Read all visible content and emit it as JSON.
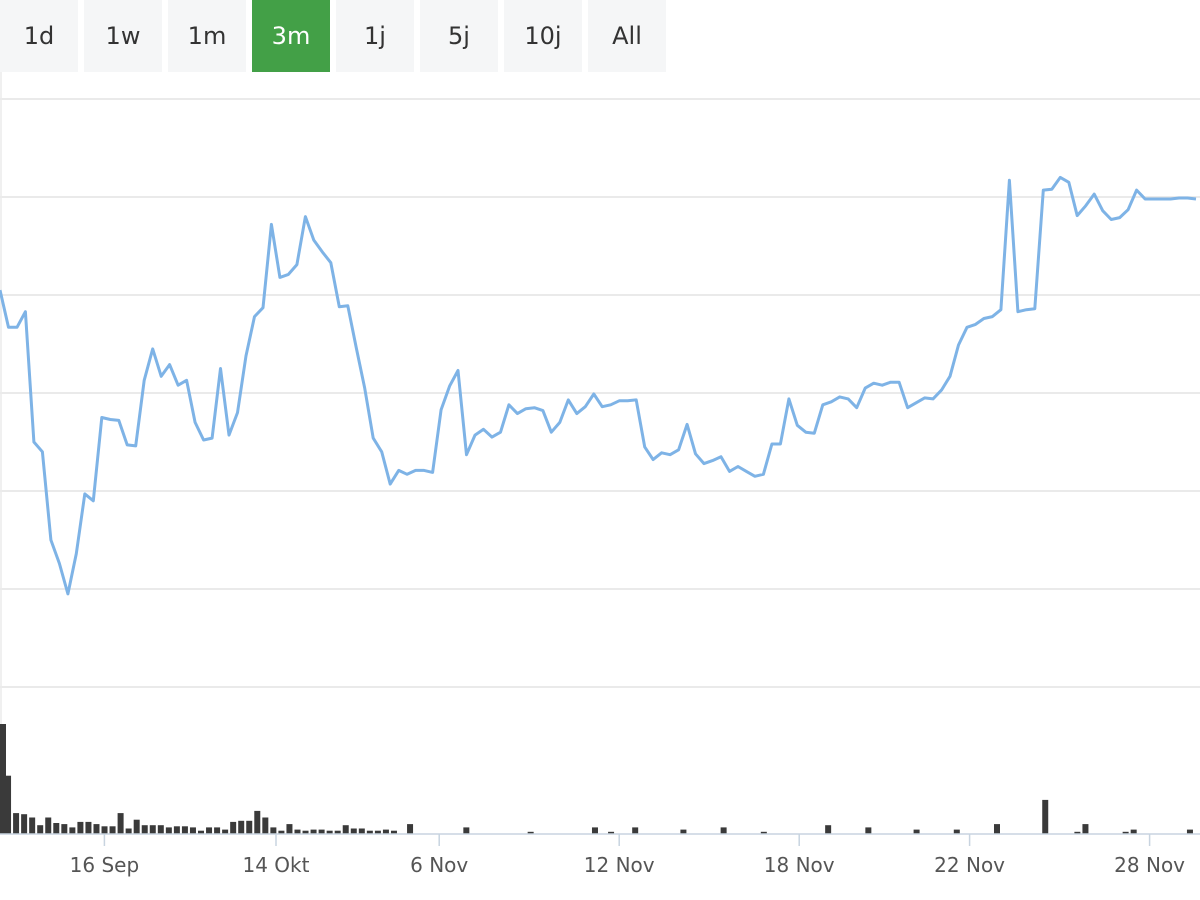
{
  "range_selector": {
    "options": [
      "1d",
      "1w",
      "1m",
      "3m",
      "1j",
      "5j",
      "10j",
      "All"
    ],
    "selected": "3m",
    "accent_color": "#43a047"
  },
  "chart_data": {
    "type": "line",
    "title": "",
    "xlabel": "",
    "ylabel": "",
    "line_color": "#7eb3e6",
    "volume_color": "#3a3a3a",
    "x_tick_labels": [
      "16 Sep",
      "14 Okt",
      "6 Nov",
      "12 Nov",
      "18 Nov",
      "22 Nov",
      "28 Nov"
    ],
    "ylim": [
      0,
      6
    ],
    "series": [
      {
        "values": [
          4.05,
          3.67,
          3.67,
          3.83,
          2.5,
          2.4,
          1.5,
          1.26,
          0.95,
          1.36,
          1.97,
          1.9,
          2.75,
          2.73,
          2.72,
          2.47,
          2.46,
          3.13,
          3.45,
          3.17,
          3.29,
          3.08,
          3.13,
          2.7,
          2.52,
          2.54,
          3.25,
          2.57,
          2.8,
          3.38,
          3.78,
          3.87,
          4.72,
          4.18,
          4.21,
          4.31,
          4.8,
          4.56,
          4.44,
          4.33,
          3.88,
          3.89,
          3.46,
          3.05,
          2.54,
          2.4,
          2.07,
          2.21,
          2.17,
          2.21,
          2.21,
          2.19,
          2.83,
          3.07,
          3.23,
          2.37,
          2.57,
          2.63,
          2.55,
          2.6,
          2.88,
          2.79,
          2.84,
          2.85,
          2.82,
          2.6,
          2.7,
          2.93,
          2.79,
          2.86,
          2.99,
          2.86,
          2.88,
          2.92,
          2.92,
          2.93,
          2.45,
          2.32,
          2.39,
          2.37,
          2.42,
          2.68,
          2.38,
          2.28,
          2.31,
          2.35,
          2.2,
          2.25,
          2.2,
          2.15,
          2.17,
          2.48,
          2.48,
          2.94,
          2.67,
          2.6,
          2.59,
          2.88,
          2.91,
          2.96,
          2.94,
          2.85,
          3.05,
          3.1,
          3.08,
          3.11,
          3.11,
          2.85,
          2.9,
          2.95,
          2.94,
          3.03,
          3.17,
          3.49,
          3.67,
          3.7,
          3.76,
          3.78,
          3.85,
          5.17,
          3.83,
          3.85,
          3.86,
          5.07,
          5.08,
          5.2,
          5.15,
          4.81,
          4.91,
          5.03,
          4.86,
          4.77,
          4.79,
          4.87,
          5.07,
          4.98,
          4.98,
          4.98,
          4.98,
          4.99,
          4.99,
          4.98
        ]
      }
    ],
    "volume": [
      1.0,
      0.53,
      0.19,
      0.18,
      0.15,
      0.08,
      0.15,
      0.1,
      0.09,
      0.06,
      0.11,
      0.11,
      0.09,
      0.07,
      0.07,
      0.19,
      0.05,
      0.13,
      0.08,
      0.08,
      0.08,
      0.06,
      0.07,
      0.07,
      0.06,
      0.03,
      0.06,
      0.06,
      0.04,
      0.11,
      0.12,
      0.12,
      0.21,
      0.15,
      0.06,
      0.03,
      0.09,
      0.04,
      0.03,
      0.04,
      0.04,
      0.03,
      0.03,
      0.08,
      0.05,
      0.05,
      0.03,
      0.03,
      0.04,
      0.03,
      0,
      0.09,
      0,
      0,
      0,
      0,
      0,
      0,
      0.06,
      0,
      0,
      0,
      0,
      0,
      0,
      0,
      0.02,
      0,
      0,
      0,
      0,
      0,
      0,
      0,
      0.06,
      0,
      0.02,
      0,
      0,
      0.06,
      0,
      0,
      0,
      0,
      0,
      0.04,
      0,
      0,
      0,
      0,
      0.06,
      0,
      0,
      0,
      0,
      0.02,
      0,
      0,
      0,
      0,
      0,
      0,
      0,
      0.08,
      0,
      0,
      0,
      0,
      0.06,
      0,
      0,
      0,
      0,
      0,
      0.04,
      0,
      0,
      0,
      0,
      0.04,
      0,
      0,
      0,
      0,
      0.09,
      0,
      0,
      0,
      0,
      0,
      0.31,
      0,
      0,
      0,
      0.02,
      0.09,
      0,
      0,
      0,
      0,
      0.02,
      0.04,
      0,
      0,
      0,
      0,
      0,
      0,
      0.04,
      0
    ]
  }
}
